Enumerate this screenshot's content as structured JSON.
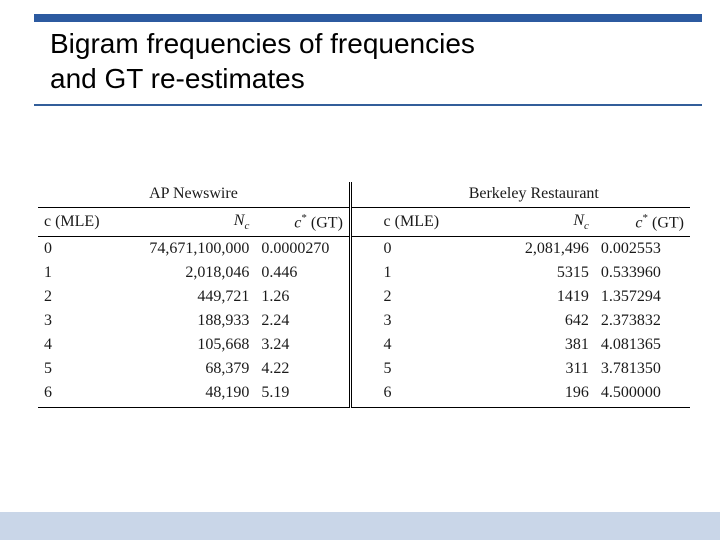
{
  "colors": {
    "accent_blue": "#2c5aa0",
    "underline_blue": "#335e9a",
    "footer_blue": "#c9d6e8",
    "text": "#1a1a1a",
    "black": "#000000"
  },
  "title": {
    "line1": "Bigram frequencies of frequencies",
    "line2": "and GT re-estimates",
    "fontsize": 28
  },
  "table": {
    "font_family": "Times New Roman",
    "fontsize": 16,
    "left_label": "AP Newswire",
    "right_label": "Berkeley Restaurant",
    "columns": {
      "c_mle": "c (MLE)",
      "nc_html": "<span class=\"ital\">N<span class=\"sub\">c</span></span>",
      "cstar_html": "<span class=\"ital\">c</span><span class=\"sup\">*</span> (GT)"
    },
    "rows_left": [
      {
        "c": "0",
        "nc": "74,671,100,000",
        "cstar": "0.0000270"
      },
      {
        "c": "1",
        "nc": "2,018,046",
        "cstar": "0.446"
      },
      {
        "c": "2",
        "nc": "449,721",
        "cstar": "1.26"
      },
      {
        "c": "3",
        "nc": "188,933",
        "cstar": "2.24"
      },
      {
        "c": "4",
        "nc": "105,668",
        "cstar": "3.24"
      },
      {
        "c": "5",
        "nc": "68,379",
        "cstar": "4.22"
      },
      {
        "c": "6",
        "nc": "48,190",
        "cstar": "5.19"
      }
    ],
    "rows_right": [
      {
        "c": "0",
        "nc": "2,081,496",
        "cstar": "0.002553"
      },
      {
        "c": "1",
        "nc": "5315",
        "cstar": "0.533960"
      },
      {
        "c": "2",
        "nc": "1419",
        "cstar": "1.357294"
      },
      {
        "c": "3",
        "nc": "642",
        "cstar": "2.373832"
      },
      {
        "c": "4",
        "nc": "381",
        "cstar": "4.081365"
      },
      {
        "c": "5",
        "nc": "311",
        "cstar": "3.781350"
      },
      {
        "c": "6",
        "nc": "196",
        "cstar": "4.500000"
      }
    ],
    "col_widths_pct": [
      8,
      24,
      14,
      4,
      8,
      24,
      14
    ]
  }
}
